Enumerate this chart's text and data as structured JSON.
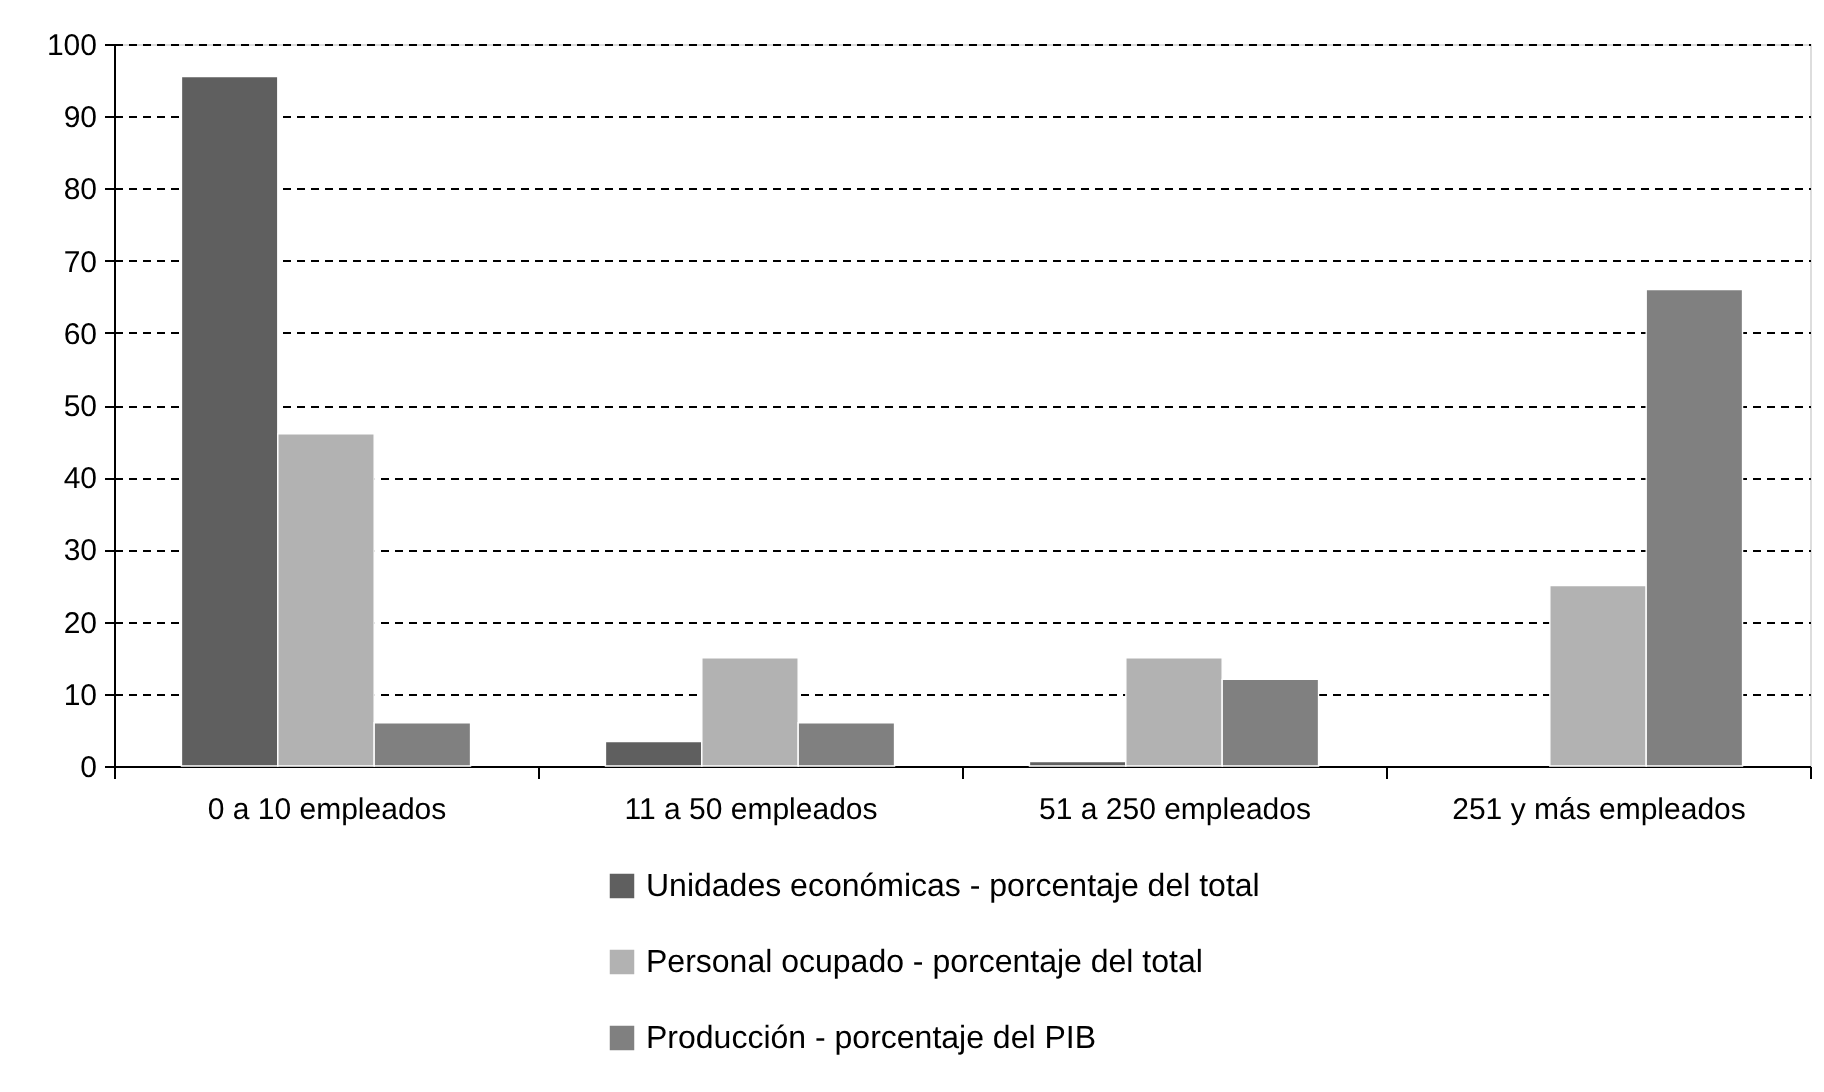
{
  "chart_data": {
    "type": "bar",
    "categories": [
      "0 a 10 empleados",
      "11 a 50 empleados",
      "51 a 250 empleados",
      "251 y más empleados"
    ],
    "series": [
      {
        "name": "Unidades económicas - porcentaje del total",
        "color": "#5f5f5f",
        "values": [
          95.5,
          3.4,
          0.6,
          null
        ]
      },
      {
        "name": "Personal ocupado - porcentaje  del total",
        "color": "#b2b2b2",
        "values": [
          46,
          15,
          15,
          25
        ]
      },
      {
        "name": "Producción - porcentaje  del PIB",
        "color": "#808080",
        "values": [
          6,
          6,
          12,
          66
        ]
      }
    ],
    "ylim": [
      0,
      100
    ],
    "yticks": [
      0,
      10,
      20,
      30,
      40,
      50,
      60,
      70,
      80,
      90,
      100
    ],
    "grid": "y",
    "legend": "bottom"
  }
}
